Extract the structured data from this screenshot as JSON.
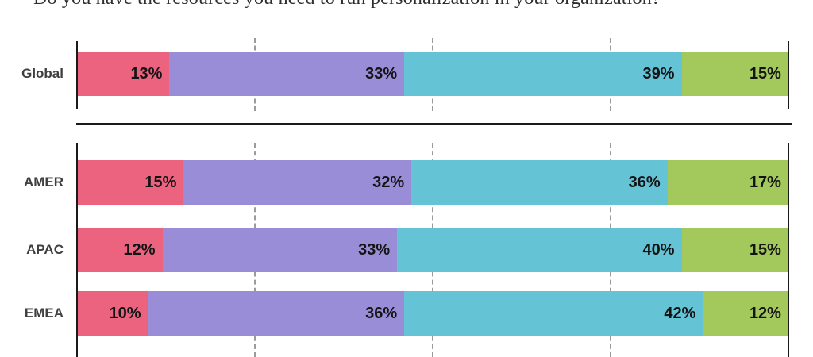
{
  "title": "Do you have the resources you need to run personalization in your organization?",
  "colors": {
    "axis": "#1a1a1a",
    "gridline": "#9b9b9b",
    "value_label_text": "#141414",
    "category_label_text": "#3f3f3f",
    "background": "#ffffff"
  },
  "chart_data": {
    "type": "bar",
    "orientation": "horizontal",
    "stacked": true,
    "value_unit": "%",
    "axis_range": [
      0,
      100
    ],
    "gridlines_at_percent": [
      25,
      50,
      75
    ],
    "legend": "none",
    "segment_colors": [
      "#EC6380",
      "#9A8DD8",
      "#65C3D6",
      "#A3C95C"
    ],
    "rows": [
      {
        "category": "Global",
        "values": [
          13,
          33,
          39,
          15
        ],
        "labels": [
          "13%",
          "33%",
          "39%",
          "15%"
        ]
      },
      {
        "category": "AMER",
        "values": [
          15,
          32,
          36,
          17
        ],
        "labels": [
          "15%",
          "32%",
          "36%",
          "17%"
        ]
      },
      {
        "category": "APAC",
        "values": [
          12,
          33,
          40,
          15
        ],
        "labels": [
          "12%",
          "33%",
          "40%",
          "15%"
        ]
      },
      {
        "category": "EMEA",
        "values": [
          10,
          36,
          42,
          12
        ],
        "labels": [
          "10%",
          "36%",
          "42%",
          "12%"
        ]
      }
    ]
  }
}
